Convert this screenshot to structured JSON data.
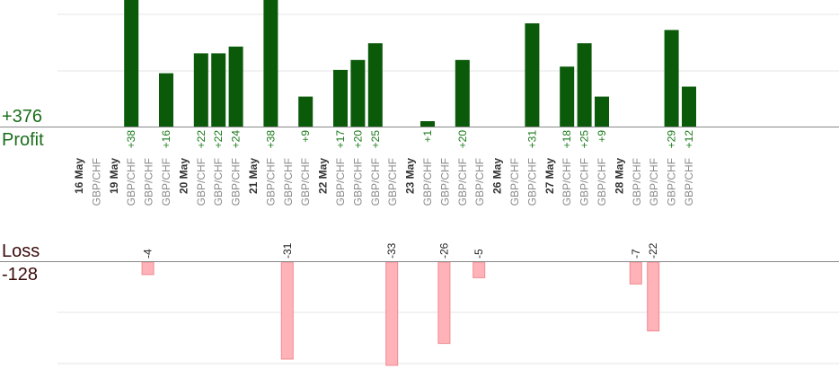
{
  "summary": {
    "profit_total": "+376",
    "profit_label": "Profit",
    "loss_label": "Loss",
    "loss_total": "-128"
  },
  "colors": {
    "profit_bar": "#0a5a0a",
    "profit_text": "#1a7a1a",
    "loss_bar": "#ffb3b8",
    "loss_bar_edge": "#f08a92",
    "date_text": "#333333",
    "pair_text": "#8a8a8a",
    "axis": "#888888",
    "grid": "#e6e6e6"
  },
  "chart_data": {
    "type": "bar",
    "profit_scale_max": 38,
    "loss_scale_max": 33,
    "columns": [
      {
        "kind": "date",
        "label": "16 May"
      },
      {
        "kind": "trade",
        "pair": "GBP/CHF"
      },
      {
        "kind": "date",
        "label": "19 May"
      },
      {
        "kind": "trade",
        "pair": "GBP/CHF",
        "profit": 38,
        "profit_label": "+38"
      },
      {
        "kind": "trade",
        "pair": "GBP/CHF",
        "loss": 4,
        "loss_label": "-4"
      },
      {
        "kind": "trade",
        "pair": "GBP/CHF",
        "profit": 16,
        "profit_label": "+16"
      },
      {
        "kind": "date",
        "label": "20 May"
      },
      {
        "kind": "trade",
        "pair": "GBP/CHF",
        "profit": 22,
        "profit_label": "+22"
      },
      {
        "kind": "trade",
        "pair": "GBP/CHF",
        "profit": 22,
        "profit_label": "+22"
      },
      {
        "kind": "trade",
        "pair": "GBP/CHF",
        "profit": 24,
        "profit_label": "+24"
      },
      {
        "kind": "date",
        "label": "21 May"
      },
      {
        "kind": "trade",
        "pair": "GBP/CHF",
        "profit": 38,
        "profit_label": "+38"
      },
      {
        "kind": "trade",
        "pair": "GBP/CHF",
        "loss": 31,
        "loss_label": "-31"
      },
      {
        "kind": "trade",
        "pair": "GBP/CHF",
        "profit": 9,
        "profit_label": "+9"
      },
      {
        "kind": "date",
        "label": "22 May"
      },
      {
        "kind": "trade",
        "pair": "GBP/CHF",
        "profit": 17,
        "profit_label": "+17"
      },
      {
        "kind": "trade",
        "pair": "GBP/CHF",
        "profit": 20,
        "profit_label": "+20"
      },
      {
        "kind": "trade",
        "pair": "GBP/CHF",
        "profit": 25,
        "profit_label": "+25"
      },
      {
        "kind": "trade",
        "pair": "GBP/CHF",
        "loss": 33,
        "loss_label": "-33"
      },
      {
        "kind": "date",
        "label": "23 May"
      },
      {
        "kind": "trade",
        "pair": "GBP/CHF",
        "profit": 1,
        "profit_label": "+1"
      },
      {
        "kind": "trade",
        "pair": "GBP/CHF",
        "loss": 26,
        "loss_label": "-26"
      },
      {
        "kind": "trade",
        "pair": "GBP/CHF",
        "profit": 20,
        "profit_label": "+20"
      },
      {
        "kind": "trade",
        "pair": "GBP/CHF",
        "loss": 5,
        "loss_label": "-5"
      },
      {
        "kind": "date",
        "label": "26 May"
      },
      {
        "kind": "trade",
        "pair": "GBP/CHF"
      },
      {
        "kind": "trade",
        "pair": "GBP/CHF",
        "profit": 31,
        "profit_label": "+31"
      },
      {
        "kind": "date",
        "label": "27 May"
      },
      {
        "kind": "trade",
        "pair": "GBP/CHF",
        "profit": 18,
        "profit_label": "+18"
      },
      {
        "kind": "trade",
        "pair": "GBP/CHF",
        "profit": 25,
        "profit_label": "+25"
      },
      {
        "kind": "trade",
        "pair": "GBP/CHF",
        "profit": 9,
        "profit_label": "+9"
      },
      {
        "kind": "date",
        "label": "28 May"
      },
      {
        "kind": "trade",
        "pair": "GBP/CHF",
        "loss": 7,
        "loss_label": "-7"
      },
      {
        "kind": "trade",
        "pair": "GBP/CHF",
        "loss": 22,
        "loss_label": "-22"
      },
      {
        "kind": "trade",
        "pair": "GBP/CHF",
        "profit": 29,
        "profit_label": "+29"
      },
      {
        "kind": "trade",
        "pair": "GBP/CHF",
        "profit": 12,
        "profit_label": "+12"
      }
    ]
  }
}
